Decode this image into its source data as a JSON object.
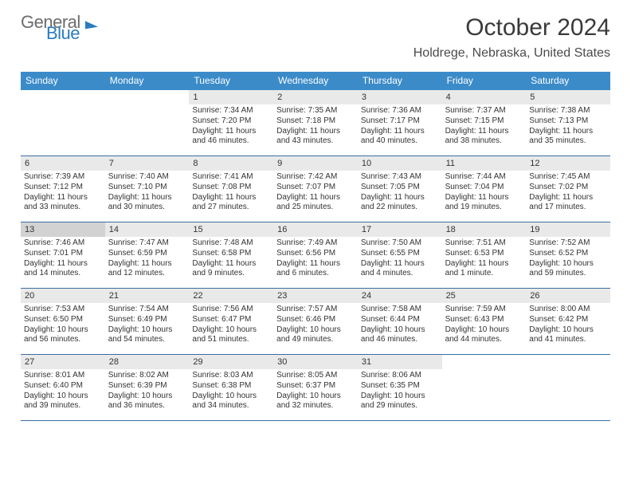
{
  "logo": {
    "word1": "General",
    "word2": "Blue"
  },
  "title": "October 2024",
  "location": "Holdrege, Nebraska, United States",
  "colors": {
    "header_bar": "#3b8bc9",
    "daynum_bg": "#e9e9e9",
    "hl_bg": "#d2d2d2",
    "week_border": "#3b6ea0",
    "logo_gray": "#6d6d6d",
    "logo_blue": "#2a7bc0"
  },
  "day_headers": [
    "Sunday",
    "Monday",
    "Tuesday",
    "Wednesday",
    "Thursday",
    "Friday",
    "Saturday"
  ],
  "weeks": [
    [
      {
        "n": "",
        "blank": true
      },
      {
        "n": "",
        "blank": true
      },
      {
        "n": "1",
        "sr": "Sunrise: 7:34 AM",
        "ss": "Sunset: 7:20 PM",
        "dl": "Daylight: 11 hours and 46 minutes."
      },
      {
        "n": "2",
        "sr": "Sunrise: 7:35 AM",
        "ss": "Sunset: 7:18 PM",
        "dl": "Daylight: 11 hours and 43 minutes."
      },
      {
        "n": "3",
        "sr": "Sunrise: 7:36 AM",
        "ss": "Sunset: 7:17 PM",
        "dl": "Daylight: 11 hours and 40 minutes."
      },
      {
        "n": "4",
        "sr": "Sunrise: 7:37 AM",
        "ss": "Sunset: 7:15 PM",
        "dl": "Daylight: 11 hours and 38 minutes."
      },
      {
        "n": "5",
        "sr": "Sunrise: 7:38 AM",
        "ss": "Sunset: 7:13 PM",
        "dl": "Daylight: 11 hours and 35 minutes."
      }
    ],
    [
      {
        "n": "6",
        "sr": "Sunrise: 7:39 AM",
        "ss": "Sunset: 7:12 PM",
        "dl": "Daylight: 11 hours and 33 minutes."
      },
      {
        "n": "7",
        "sr": "Sunrise: 7:40 AM",
        "ss": "Sunset: 7:10 PM",
        "dl": "Daylight: 11 hours and 30 minutes."
      },
      {
        "n": "8",
        "sr": "Sunrise: 7:41 AM",
        "ss": "Sunset: 7:08 PM",
        "dl": "Daylight: 11 hours and 27 minutes."
      },
      {
        "n": "9",
        "sr": "Sunrise: 7:42 AM",
        "ss": "Sunset: 7:07 PM",
        "dl": "Daylight: 11 hours and 25 minutes."
      },
      {
        "n": "10",
        "sr": "Sunrise: 7:43 AM",
        "ss": "Sunset: 7:05 PM",
        "dl": "Daylight: 11 hours and 22 minutes."
      },
      {
        "n": "11",
        "sr": "Sunrise: 7:44 AM",
        "ss": "Sunset: 7:04 PM",
        "dl": "Daylight: 11 hours and 19 minutes."
      },
      {
        "n": "12",
        "sr": "Sunrise: 7:45 AM",
        "ss": "Sunset: 7:02 PM",
        "dl": "Daylight: 11 hours and 17 minutes."
      }
    ],
    [
      {
        "n": "13",
        "hl": true,
        "sr": "Sunrise: 7:46 AM",
        "ss": "Sunset: 7:01 PM",
        "dl": "Daylight: 11 hours and 14 minutes."
      },
      {
        "n": "14",
        "sr": "Sunrise: 7:47 AM",
        "ss": "Sunset: 6:59 PM",
        "dl": "Daylight: 11 hours and 12 minutes."
      },
      {
        "n": "15",
        "sr": "Sunrise: 7:48 AM",
        "ss": "Sunset: 6:58 PM",
        "dl": "Daylight: 11 hours and 9 minutes."
      },
      {
        "n": "16",
        "sr": "Sunrise: 7:49 AM",
        "ss": "Sunset: 6:56 PM",
        "dl": "Daylight: 11 hours and 6 minutes."
      },
      {
        "n": "17",
        "sr": "Sunrise: 7:50 AM",
        "ss": "Sunset: 6:55 PM",
        "dl": "Daylight: 11 hours and 4 minutes."
      },
      {
        "n": "18",
        "sr": "Sunrise: 7:51 AM",
        "ss": "Sunset: 6:53 PM",
        "dl": "Daylight: 11 hours and 1 minute."
      },
      {
        "n": "19",
        "sr": "Sunrise: 7:52 AM",
        "ss": "Sunset: 6:52 PM",
        "dl": "Daylight: 10 hours and 59 minutes."
      }
    ],
    [
      {
        "n": "20",
        "sr": "Sunrise: 7:53 AM",
        "ss": "Sunset: 6:50 PM",
        "dl": "Daylight: 10 hours and 56 minutes."
      },
      {
        "n": "21",
        "sr": "Sunrise: 7:54 AM",
        "ss": "Sunset: 6:49 PM",
        "dl": "Daylight: 10 hours and 54 minutes."
      },
      {
        "n": "22",
        "sr": "Sunrise: 7:56 AM",
        "ss": "Sunset: 6:47 PM",
        "dl": "Daylight: 10 hours and 51 minutes."
      },
      {
        "n": "23",
        "sr": "Sunrise: 7:57 AM",
        "ss": "Sunset: 6:46 PM",
        "dl": "Daylight: 10 hours and 49 minutes."
      },
      {
        "n": "24",
        "sr": "Sunrise: 7:58 AM",
        "ss": "Sunset: 6:44 PM",
        "dl": "Daylight: 10 hours and 46 minutes."
      },
      {
        "n": "25",
        "sr": "Sunrise: 7:59 AM",
        "ss": "Sunset: 6:43 PM",
        "dl": "Daylight: 10 hours and 44 minutes."
      },
      {
        "n": "26",
        "sr": "Sunrise: 8:00 AM",
        "ss": "Sunset: 6:42 PM",
        "dl": "Daylight: 10 hours and 41 minutes."
      }
    ],
    [
      {
        "n": "27",
        "sr": "Sunrise: 8:01 AM",
        "ss": "Sunset: 6:40 PM",
        "dl": "Daylight: 10 hours and 39 minutes."
      },
      {
        "n": "28",
        "sr": "Sunrise: 8:02 AM",
        "ss": "Sunset: 6:39 PM",
        "dl": "Daylight: 10 hours and 36 minutes."
      },
      {
        "n": "29",
        "sr": "Sunrise: 8:03 AM",
        "ss": "Sunset: 6:38 PM",
        "dl": "Daylight: 10 hours and 34 minutes."
      },
      {
        "n": "30",
        "sr": "Sunrise: 8:05 AM",
        "ss": "Sunset: 6:37 PM",
        "dl": "Daylight: 10 hours and 32 minutes."
      },
      {
        "n": "31",
        "sr": "Sunrise: 8:06 AM",
        "ss": "Sunset: 6:35 PM",
        "dl": "Daylight: 10 hours and 29 minutes."
      },
      {
        "n": "",
        "blank": true
      },
      {
        "n": "",
        "blank": true
      }
    ]
  ]
}
